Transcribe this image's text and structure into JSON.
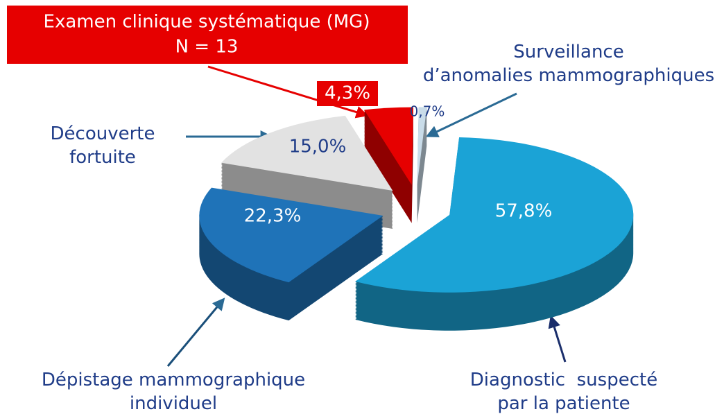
{
  "chart_data": {
    "type": "pie3d",
    "categories": [
      "Diagnostic  suspecté\npar la patiente",
      "Dépistage mammographique\nindividuel",
      "Découverte\nfortuite",
      "Examen clinique systématique (MG)",
      "Surveillance\nd’anomalies mammographiques"
    ],
    "values": [
      57.8,
      22.3,
      15.0,
      4.3,
      0.7
    ],
    "value_labels": [
      "57,8%",
      "22,3%",
      "15,0%",
      "4,3%",
      "0,7%"
    ],
    "colors": [
      "#1ba3d6",
      "#1f73b8",
      "#e2e2e2",
      "#e60000",
      "#c9dce9"
    ],
    "annotation": "N = 13"
  }
}
